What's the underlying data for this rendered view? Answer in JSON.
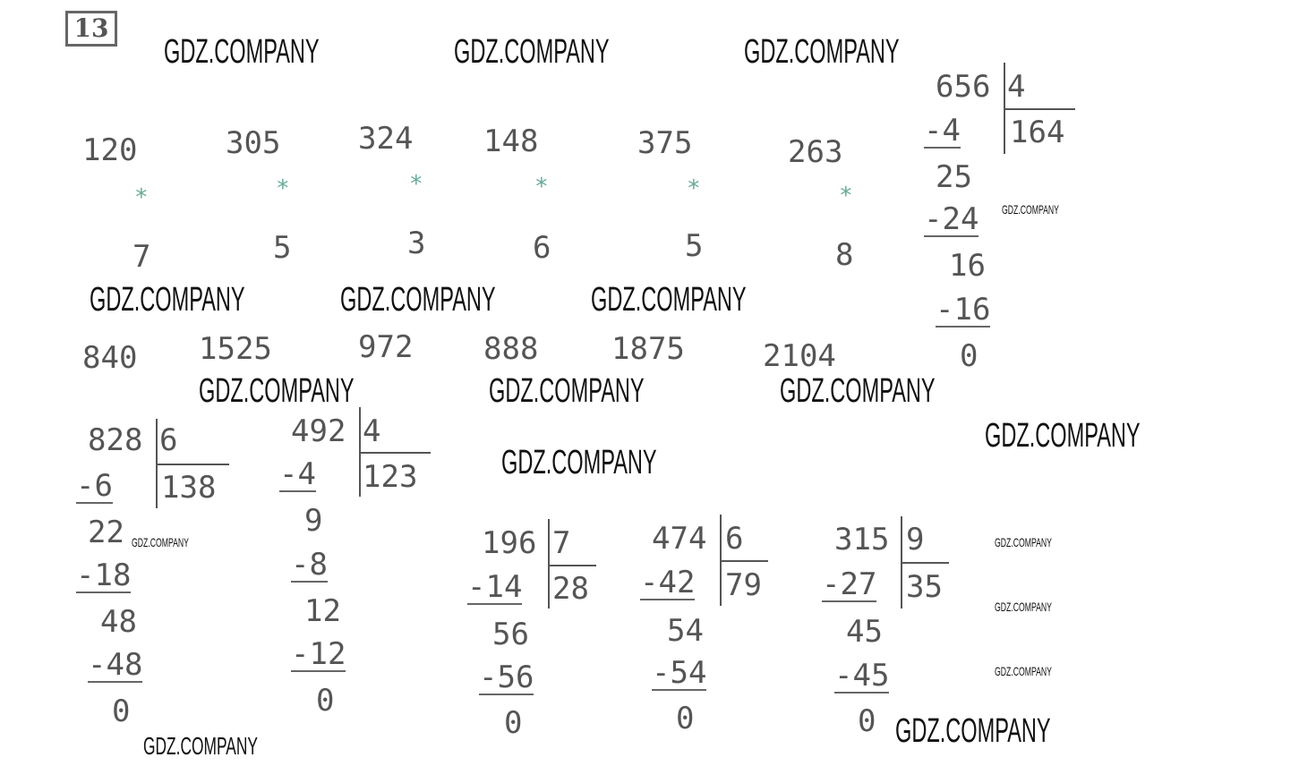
{
  "task_number": "13",
  "watermark": "GDZ.COMPANY",
  "multiplications": [
    {
      "a": "120",
      "op": "*",
      "b": "7",
      "result": "840"
    },
    {
      "a": "305",
      "op": "*",
      "b": "5",
      "result": "1525"
    },
    {
      "a": "324",
      "op": "*",
      "b": "3",
      "result": "972"
    },
    {
      "a": "148",
      "op": "*",
      "b": "6",
      "result": "888"
    },
    {
      "a": "375",
      "op": "*",
      "b": "5",
      "result": "1875"
    },
    {
      "a": "263",
      "op": "*",
      "b": "8",
      "result": "2104"
    }
  ],
  "divisions": [
    {
      "dividend": "656",
      "divisor": "4",
      "quotient": "164",
      "steps": [
        "-4",
        "25",
        "-24",
        "16",
        "-16",
        "0"
      ]
    },
    {
      "dividend": "828",
      "divisor": "6",
      "quotient": "138",
      "steps": [
        "-6",
        "22",
        "-18",
        "48",
        "-48",
        "0"
      ]
    },
    {
      "dividend": "492",
      "divisor": "4",
      "quotient": "123",
      "steps": [
        "-4",
        "9",
        "-8",
        "12",
        "-12",
        "0"
      ]
    },
    {
      "dividend": "196",
      "divisor": "7",
      "quotient": "28",
      "steps": [
        "-14",
        "56",
        "-56",
        "0"
      ]
    },
    {
      "dividend": "474",
      "divisor": "6",
      "quotient": "79",
      "steps": [
        "-42",
        "54",
        "-54",
        "0"
      ]
    },
    {
      "dividend": "315",
      "divisor": "9",
      "quotient": "35",
      "steps": [
        "-27",
        "45",
        "-45",
        "0"
      ]
    }
  ]
}
